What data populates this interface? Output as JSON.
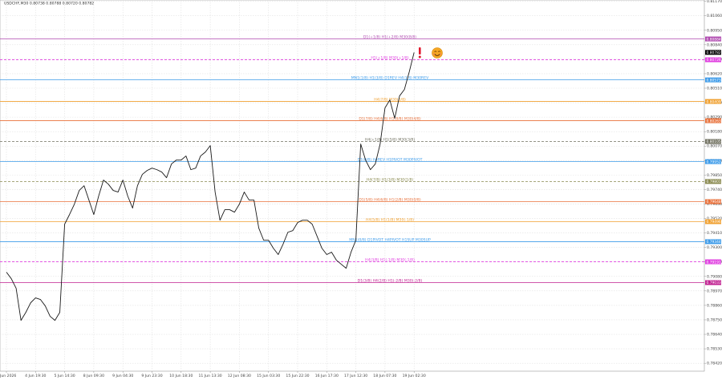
{
  "chart_data": {
    "type": "line",
    "title": "USDCHF,M30  0.80738 0.80788 0.80720 0.80782",
    "color": "#1a1a1a",
    "grid": true,
    "ylim": [
      0.7836,
      0.8118
    ],
    "yticks": [
      {
        "value": 0.8117,
        "label": "0.81170"
      },
      {
        "value": 0.8106,
        "label": "0.81060"
      },
      {
        "value": 0.8095,
        "label": "0.80950"
      },
      {
        "value": 0.8084,
        "label": "0.80840"
      },
      {
        "value": 0.8073,
        "label": "0.80730"
      },
      {
        "value": 0.8062,
        "label": "0.80620"
      },
      {
        "value": 0.8051,
        "label": "0.80510"
      },
      {
        "value": 0.804,
        "label": "0.80400"
      },
      {
        "value": 0.8029,
        "label": "0.80290"
      },
      {
        "value": 0.8018,
        "label": "0.80180"
      },
      {
        "value": 0.8007,
        "label": "0.80070"
      },
      {
        "value": 0.7996,
        "label": "0.79960"
      },
      {
        "value": 0.7985,
        "label": "0.79850"
      },
      {
        "value": 0.7974,
        "label": "0.79740"
      },
      {
        "value": 0.7963,
        "label": "0.79630"
      },
      {
        "value": 0.7952,
        "label": "0.79520"
      },
      {
        "value": 0.7941,
        "label": "0.79410"
      },
      {
        "value": 0.793,
        "label": "0.79300"
      },
      {
        "value": 0.7919,
        "label": "0.79190"
      },
      {
        "value": 0.7908,
        "label": "0.79080"
      },
      {
        "value": 0.7897,
        "label": "0.78970"
      },
      {
        "value": 0.7886,
        "label": "0.78860"
      },
      {
        "value": 0.7875,
        "label": "0.78750"
      },
      {
        "value": 0.7864,
        "label": "0.78640"
      },
      {
        "value": 0.7853,
        "label": "0.78530"
      },
      {
        "value": 0.7842,
        "label": "0.78420"
      }
    ],
    "categories": [
      "4 Jun 2026",
      null,
      null,
      null,
      null,
      null,
      "4 Jun 19:30",
      null,
      null,
      null,
      null,
      null,
      "5 Jun 14:30",
      null,
      null,
      null,
      null,
      null,
      "8 Jun 09:30",
      null,
      null,
      null,
      null,
      null,
      "9 Jun 04:30",
      null,
      null,
      null,
      null,
      null,
      "9 Jun 23:30",
      null,
      null,
      null,
      null,
      null,
      "10 Jun 18:30",
      null,
      null,
      null,
      null,
      null,
      "11 Jun 13:30",
      null,
      null,
      null,
      null,
      null,
      "12 Jun 08:30",
      null,
      null,
      null,
      null,
      null,
      "15 Jun 03:30",
      null,
      null,
      null,
      null,
      null,
      "15 Jun 22:30",
      null,
      null,
      null,
      null,
      null,
      "16 Jun 17:30",
      null,
      null,
      null,
      null,
      null,
      "17 Jun 12:30",
      null,
      null,
      null,
      null,
      null,
      "18 Jun 07:30",
      null,
      null,
      null,
      null,
      null,
      "19 Jun 02:30"
    ],
    "values": [
      0.79112,
      0.79063,
      0.7899,
      0.78746,
      0.78807,
      0.7888,
      0.78917,
      0.78905,
      0.78856,
      0.78777,
      0.78746,
      0.78807,
      0.79477,
      0.7955,
      0.79629,
      0.79733,
      0.79769,
      0.7966,
      0.7955,
      0.7969,
      0.79812,
      0.79781,
      0.79733,
      0.79721,
      0.79812,
      0.7969,
      0.79599,
      0.79769,
      0.79855,
      0.79885,
      0.79903,
      0.79891,
      0.79873,
      0.7983,
      0.79934,
      0.79964,
      0.79964,
      0.79995,
      0.79891,
      0.79903,
      0.79995,
      0.80025,
      0.80074,
      0.79721,
      0.79507,
      0.79587,
      0.79587,
      0.79568,
      0.79629,
      0.79721,
      0.7966,
      0.7966,
      0.79447,
      0.79355,
      0.79355,
      0.79294,
      0.79246,
      0.79325,
      0.79416,
      0.79428,
      0.79489,
      0.79507,
      0.79507,
      0.79477,
      0.79386,
      0.79294,
      0.79246,
      0.79264,
      0.79203,
      0.79172,
      0.79142,
      0.79264,
      0.79355,
      0.80086,
      0.79964,
      0.79891,
      0.79934,
      0.80086,
      0.8036,
      0.80421,
      0.80281,
      0.80451,
      0.805,
      0.80634,
      0.80782
    ],
    "levels": [
      {
        "value": 0.80884,
        "label": "D1(+1/8) H1(+2/8) M30(8/8)",
        "color": "#b04ab0",
        "dashed": false
      },
      {
        "value": 0.80726,
        "label": "H1(+1/8) M30(+1/8)",
        "color": "#e040e0",
        "dashed": true
      },
      {
        "value": 0.80573,
        "label": "MN1(1/8) H1(3/8) D1REV H4(3/8) M30REV",
        "color": "#3d9be9",
        "dashed": false
      },
      {
        "value": 0.80409,
        "label": "H4(7/8) M30(5/8)",
        "color": "#f0a030",
        "dashed": false
      },
      {
        "value": 0.80263,
        "label": "D1(7/8) H4(6/8) H1(8/8) M30(4/8)",
        "color": "#e8703a",
        "dashed": false
      },
      {
        "value": 0.80105,
        "label": "H4(+1/8) H1(5/8) M30(3/8)",
        "color": "#707060",
        "dashed": true
      },
      {
        "value": 0.79952,
        "label": "D1(6/8) H4REV H1PIVOT M30PIVOT",
        "color": "#3d9be9",
        "dashed": false
      },
      {
        "value": 0.79801,
        "label": "H4(7/8) H1(3/8) M30(1/8)",
        "color": "#8a8a50",
        "dashed": true
      },
      {
        "value": 0.79648,
        "label": "D1(5/8) H4(6/8) H1(2/8) M30(0/8)",
        "color": "#e8703a",
        "dashed": false
      },
      {
        "value": 0.79496,
        "label": "H4(5/8) H1(1/8) M30(-1/8)",
        "color": "#f0a030",
        "dashed": false
      },
      {
        "value": 0.79344,
        "label": "MN1(0/8) D1PIVOT H4PIVOT H1SUP M30SUP",
        "color": "#3d9be9",
        "dashed": false
      },
      {
        "value": 0.79191,
        "label": "H4(3/8) H1(-1/8) M30(-1/8)",
        "color": "#e040e0",
        "dashed": true
      },
      {
        "value": 0.79033,
        "label": "D1(3/8) H4(2/8) H1(-2/8) M30(-2/8)",
        "color": "#c02090",
        "dashed": false
      }
    ]
  }
}
